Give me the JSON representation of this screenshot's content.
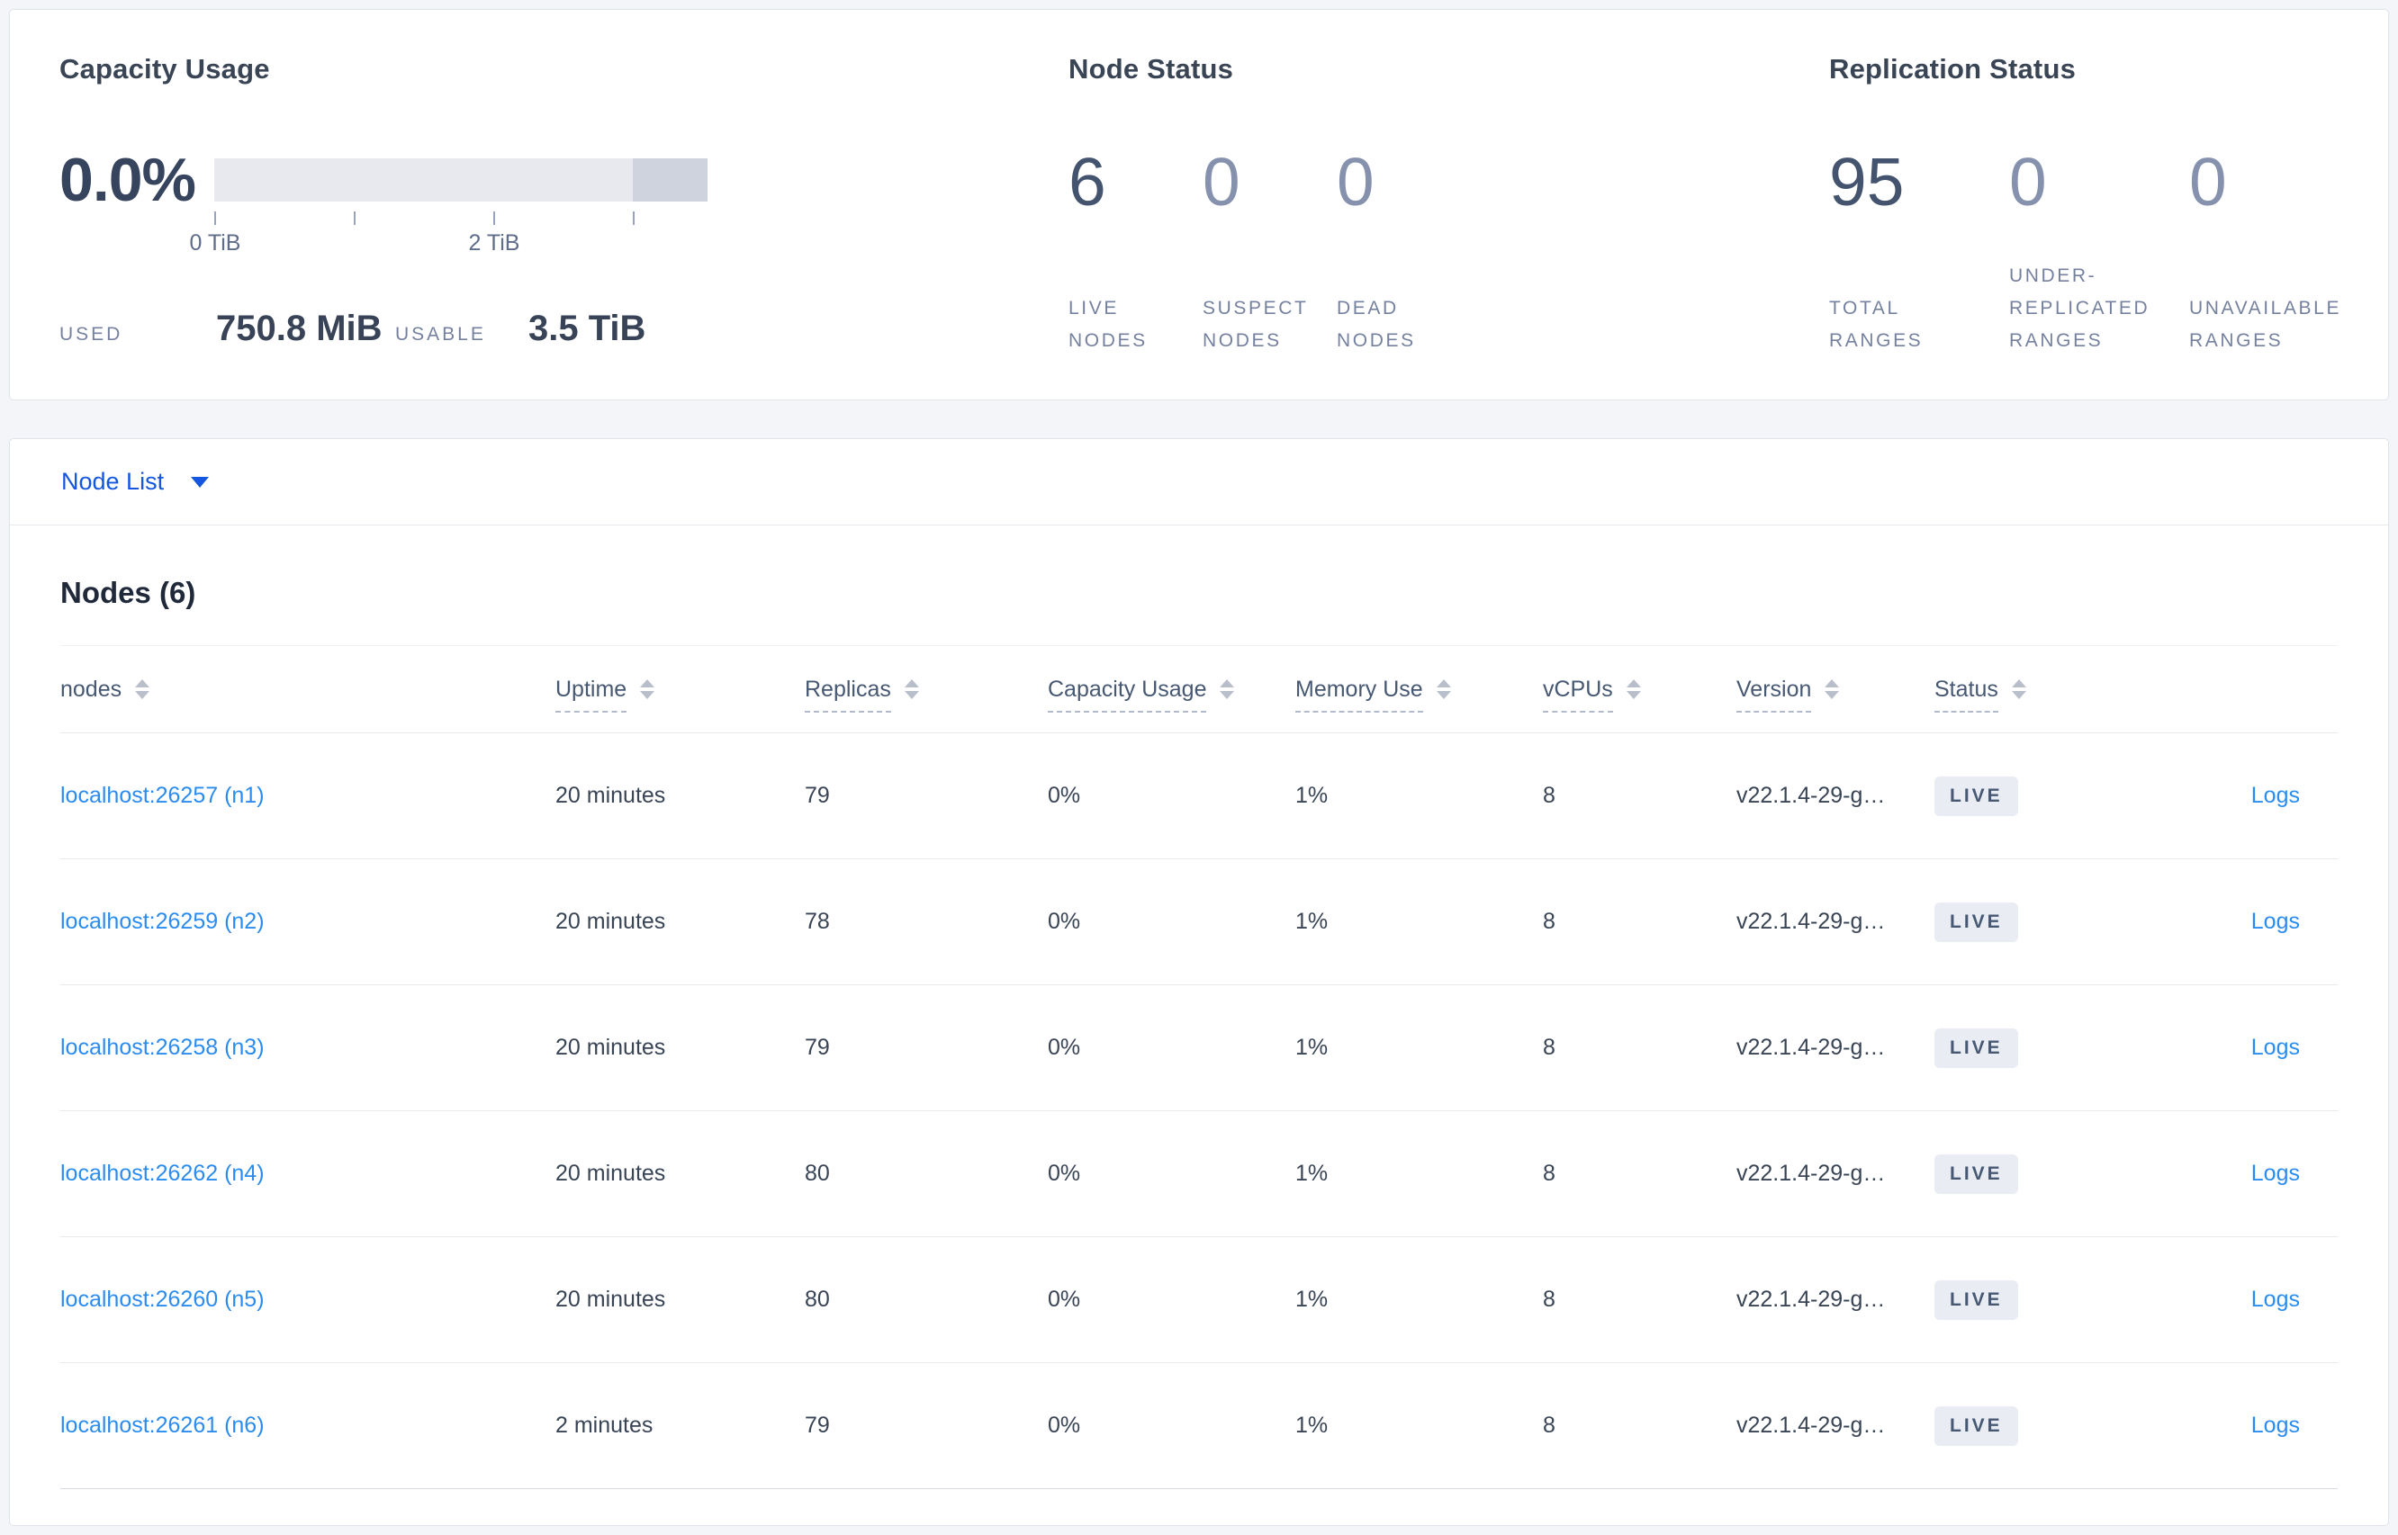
{
  "capacity_panel": {
    "title": "Capacity Usage",
    "percent": "0.0%",
    "tick_labels": [
      "0 TiB",
      "2 TiB"
    ],
    "used_label": "USED",
    "used_value": "750.8 MiB",
    "usable_label": "USABLE",
    "usable_value": "3.5 TiB"
  },
  "node_status_panel": {
    "title": "Node Status",
    "stats": [
      {
        "value": "6",
        "label": "LIVE NODES"
      },
      {
        "value": "0",
        "label": "SUSPECT NODES"
      },
      {
        "value": "0",
        "label": "DEAD NODES"
      }
    ]
  },
  "replication_panel": {
    "title": "Replication Status",
    "stats": [
      {
        "value": "95",
        "label": "TOTAL RANGES"
      },
      {
        "value": "0",
        "label": "UNDER-REPLICATED RANGES"
      },
      {
        "value": "0",
        "label": "UNAVAILABLE RANGES"
      }
    ]
  },
  "node_list": {
    "selector_label": "Node List"
  },
  "table": {
    "title": "Nodes (6)",
    "columns": [
      "nodes",
      "Uptime",
      "Replicas",
      "Capacity Usage",
      "Memory Use",
      "vCPUs",
      "Version",
      "Status"
    ],
    "logs_label": "Logs",
    "rows": [
      {
        "node": "localhost:26257 (n1)",
        "uptime": "20 minutes",
        "replicas": "79",
        "capacity": "0%",
        "memory": "1%",
        "vcpus": "8",
        "version": "v22.1.4-29-g…",
        "status": "LIVE"
      },
      {
        "node": "localhost:26259 (n2)",
        "uptime": "20 minutes",
        "replicas": "78",
        "capacity": "0%",
        "memory": "1%",
        "vcpus": "8",
        "version": "v22.1.4-29-g…",
        "status": "LIVE"
      },
      {
        "node": "localhost:26258 (n3)",
        "uptime": "20 minutes",
        "replicas": "79",
        "capacity": "0%",
        "memory": "1%",
        "vcpus": "8",
        "version": "v22.1.4-29-g…",
        "status": "LIVE"
      },
      {
        "node": "localhost:26262 (n4)",
        "uptime": "20 minutes",
        "replicas": "80",
        "capacity": "0%",
        "memory": "1%",
        "vcpus": "8",
        "version": "v22.1.4-29-g…",
        "status": "LIVE"
      },
      {
        "node": "localhost:26260 (n5)",
        "uptime": "20 minutes",
        "replicas": "80",
        "capacity": "0%",
        "memory": "1%",
        "vcpus": "8",
        "version": "v22.1.4-29-g…",
        "status": "LIVE"
      },
      {
        "node": "localhost:26261 (n6)",
        "uptime": "2 minutes",
        "replicas": "79",
        "capacity": "0%",
        "memory": "1%",
        "vcpus": "8",
        "version": "v22.1.4-29-g…",
        "status": "LIVE"
      }
    ]
  },
  "colors": {
    "accent_blue": "#1456e0",
    "link_blue": "#2b8cf0",
    "page_background": "#f4f5f9"
  }
}
